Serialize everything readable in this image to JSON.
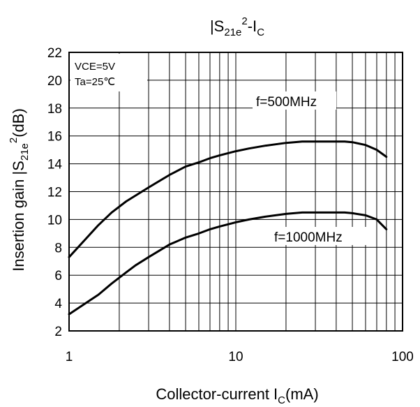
{
  "chart_data": {
    "type": "line",
    "title": {
      "main": "|S",
      "sub1": "21e",
      "sup": "2",
      "mid": "-I",
      "sub2": "C"
    },
    "xlabel": {
      "main": "Collector-current I",
      "sub": "C",
      "tail": "(mA)"
    },
    "ylabel": {
      "main": "Insertion gain |S",
      "sub": "21e",
      "sup": "2",
      "tail": "(dB)"
    },
    "x_scale": "log",
    "xlim": [
      1,
      100
    ],
    "ylim": [
      2,
      22
    ],
    "x_ticks": [
      "1",
      "10",
      "100"
    ],
    "y_ticks": [
      "2",
      "4",
      "6",
      "8",
      "10",
      "12",
      "14",
      "16",
      "18",
      "20",
      "22"
    ],
    "grid": true,
    "conditions": [
      "VCE=5V",
      "Ta=25℃"
    ],
    "series": [
      {
        "name": "f=500MHz",
        "x": [
          1,
          1.5,
          1.8,
          2.2,
          3,
          4,
          5,
          6,
          7,
          8,
          10,
          12,
          15,
          20,
          25,
          30,
          40,
          45,
          50,
          60,
          70,
          80
        ],
        "y": [
          7.3,
          9.6,
          10.5,
          11.3,
          12.3,
          13.2,
          13.8,
          14.1,
          14.4,
          14.6,
          14.9,
          15.1,
          15.3,
          15.5,
          15.6,
          15.6,
          15.6,
          15.6,
          15.55,
          15.35,
          15.0,
          14.5
        ]
      },
      {
        "name": "f=1000MHz",
        "x": [
          1,
          1.5,
          1.8,
          2.2,
          2.5,
          3,
          4,
          5,
          6,
          7,
          8,
          10,
          12,
          15,
          20,
          25,
          30,
          40,
          45,
          50,
          60,
          70,
          80
        ],
        "y": [
          3.2,
          4.6,
          5.4,
          6.2,
          6.7,
          7.3,
          8.2,
          8.7,
          9.0,
          9.3,
          9.5,
          9.8,
          10.0,
          10.2,
          10.4,
          10.5,
          10.5,
          10.5,
          10.5,
          10.45,
          10.3,
          10.0,
          9.3
        ]
      }
    ]
  }
}
